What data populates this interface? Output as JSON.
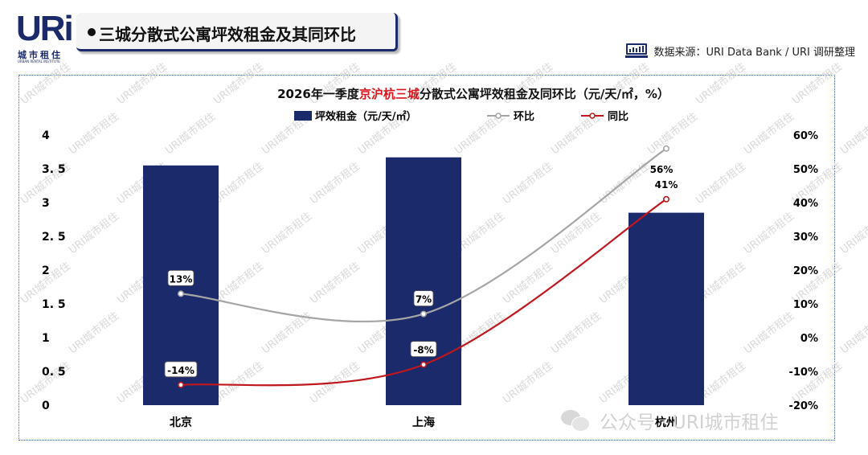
{
  "logo": {
    "mark": "URi",
    "cn": "城市租住",
    "en": "URBAN RENTAL INSTITUTE"
  },
  "header": {
    "title": "三城分散式公寓坪效租金及其同环比"
  },
  "source": {
    "text": "数据来源：URI Data Bank / URI 调研整理"
  },
  "watermark": {
    "text": "URI城市租住",
    "footer_text": "公众号 · URI城市租住"
  },
  "chart_data": {
    "type": "bar",
    "title_parts": [
      {
        "text": "2026年一季度",
        "color": "#111111"
      },
      {
        "text": "京沪杭三城",
        "color": "#d9141c"
      },
      {
        "text": "分散式公寓坪效租金及同环比（元/天/㎡，%）",
        "color": "#111111"
      }
    ],
    "categories": [
      "北京",
      "上海",
      "杭州"
    ],
    "left_axis": {
      "ylim": [
        0,
        4
      ],
      "ticks": [
        "0",
        "0. 5",
        "1",
        "1. 5",
        "2",
        "2. 5",
        "3",
        "3. 5",
        "4"
      ]
    },
    "right_axis": {
      "ylim": [
        -20,
        60
      ],
      "ticks": [
        "-20%",
        "-10%",
        "0%",
        "10%",
        "20%",
        "30%",
        "40%",
        "50%",
        "60%"
      ]
    },
    "series": [
      {
        "name": "坪效租金（元/天/㎡）",
        "kind": "bar",
        "axis": "left",
        "values": [
          3.55,
          3.67,
          2.85
        ],
        "color": "#1b2a6b"
      },
      {
        "name": "环比",
        "kind": "line",
        "axis": "right",
        "values": [
          13,
          7,
          56
        ],
        "labels": [
          "13%",
          "7%",
          "56%"
        ],
        "color": "#a6a6a6"
      },
      {
        "name": "同比",
        "kind": "line",
        "axis": "right",
        "values": [
          -14,
          -8,
          41
        ],
        "labels": [
          "-14%",
          "-8%",
          "41%"
        ],
        "color": "#c0161d"
      }
    ],
    "grid": false,
    "legend": "top-center"
  }
}
